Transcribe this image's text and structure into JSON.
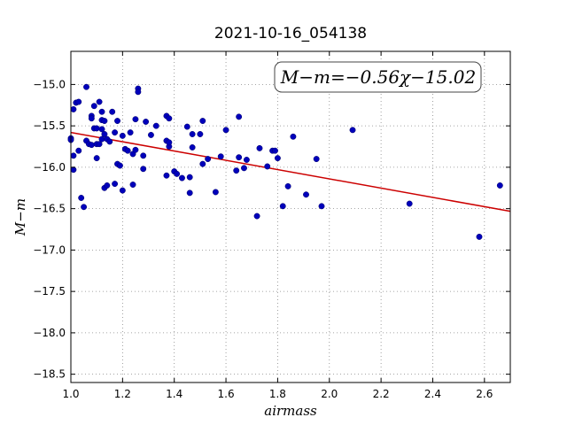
{
  "chart_data": {
    "type": "scatter",
    "title": "2021-10-16_054138",
    "xlabel": "airmass",
    "ylabel": "M−m",
    "xlim": [
      1.0,
      2.7
    ],
    "ylim": [
      -18.6,
      -14.6
    ],
    "y_inverted": true,
    "grid": true,
    "xticks": [
      1.0,
      1.2,
      1.4,
      1.6,
      1.8,
      2.0,
      2.2,
      2.4,
      2.6
    ],
    "xtick_labels": [
      "1.0",
      "1.2",
      "1.4",
      "1.6",
      "1.8",
      "2.0",
      "2.2",
      "2.4",
      "2.6"
    ],
    "yticks": [
      -15.0,
      -15.5,
      -16.0,
      -16.5,
      -17.0,
      -17.5,
      -18.0,
      -18.5
    ],
    "ytick_labels": [
      "−15.0",
      "−15.5",
      "−16.0",
      "−16.5",
      "−17.0",
      "−17.5",
      "−18.0",
      "−18.5"
    ],
    "annotation": "M−m=−0.56χ−15.02",
    "fit": {
      "slope": -0.56,
      "intercept": -15.02,
      "color": "#cc0000"
    },
    "point_color": "#0000bb",
    "points": [
      [
        1.0,
        -15.65
      ],
      [
        1.0,
        -15.67
      ],
      [
        1.01,
        -15.3
      ],
      [
        1.01,
        -15.86
      ],
      [
        1.01,
        -16.03
      ],
      [
        1.02,
        -15.22
      ],
      [
        1.03,
        -15.21
      ],
      [
        1.03,
        -15.8
      ],
      [
        1.04,
        -16.37
      ],
      [
        1.05,
        -16.48
      ],
      [
        1.06,
        -15.68
      ],
      [
        1.06,
        -15.03
      ],
      [
        1.07,
        -15.72
      ],
      [
        1.08,
        -15.38
      ],
      [
        1.08,
        -15.41
      ],
      [
        1.08,
        -15.73
      ],
      [
        1.09,
        -15.26
      ],
      [
        1.09,
        -15.53
      ],
      [
        1.1,
        -15.53
      ],
      [
        1.1,
        -15.89
      ],
      [
        1.1,
        -15.72
      ],
      [
        1.11,
        -15.72
      ],
      [
        1.11,
        -15.21
      ],
      [
        1.12,
        -15.33
      ],
      [
        1.12,
        -15.54
      ],
      [
        1.12,
        -15.43
      ],
      [
        1.12,
        -15.66
      ],
      [
        1.13,
        -15.6
      ],
      [
        1.13,
        -15.44
      ],
      [
        1.13,
        -16.25
      ],
      [
        1.14,
        -15.66
      ],
      [
        1.14,
        -16.22
      ],
      [
        1.15,
        -15.69
      ],
      [
        1.16,
        -15.33
      ],
      [
        1.17,
        -15.58
      ],
      [
        1.17,
        -16.2
      ],
      [
        1.18,
        -15.96
      ],
      [
        1.18,
        -15.44
      ],
      [
        1.19,
        -15.98
      ],
      [
        1.2,
        -16.28
      ],
      [
        1.2,
        -15.62
      ],
      [
        1.21,
        -15.78
      ],
      [
        1.22,
        -15.8
      ],
      [
        1.23,
        -15.58
      ],
      [
        1.24,
        -15.84
      ],
      [
        1.24,
        -16.21
      ],
      [
        1.25,
        -15.79
      ],
      [
        1.25,
        -15.42
      ],
      [
        1.26,
        -15.05
      ],
      [
        1.26,
        -15.09
      ],
      [
        1.28,
        -15.86
      ],
      [
        1.28,
        -16.02
      ],
      [
        1.29,
        -15.45
      ],
      [
        1.31,
        -15.61
      ],
      [
        1.33,
        -15.5
      ],
      [
        1.37,
        -16.1
      ],
      [
        1.37,
        -15.68
      ],
      [
        1.37,
        -15.38
      ],
      [
        1.38,
        -15.41
      ],
      [
        1.38,
        -15.75
      ],
      [
        1.38,
        -15.7
      ],
      [
        1.4,
        -16.05
      ],
      [
        1.41,
        -16.08
      ],
      [
        1.43,
        -16.13
      ],
      [
        1.45,
        -15.51
      ],
      [
        1.46,
        -16.31
      ],
      [
        1.46,
        -16.12
      ],
      [
        1.47,
        -15.76
      ],
      [
        1.47,
        -15.6
      ],
      [
        1.5,
        -15.6
      ],
      [
        1.51,
        -15.44
      ],
      [
        1.51,
        -15.96
      ],
      [
        1.53,
        -15.9
      ],
      [
        1.56,
        -16.3
      ],
      [
        1.58,
        -15.87
      ],
      [
        1.6,
        -15.55
      ],
      [
        1.64,
        -16.04
      ],
      [
        1.65,
        -15.88
      ],
      [
        1.65,
        -15.39
      ],
      [
        1.67,
        -16.01
      ],
      [
        1.68,
        -15.91
      ],
      [
        1.72,
        -16.59
      ],
      [
        1.73,
        -15.77
      ],
      [
        1.76,
        -15.99
      ],
      [
        1.78,
        -15.8
      ],
      [
        1.79,
        -15.8
      ],
      [
        1.8,
        -15.89
      ],
      [
        1.82,
        -16.47
      ],
      [
        1.84,
        -16.23
      ],
      [
        1.86,
        -15.63
      ],
      [
        1.91,
        -16.33
      ],
      [
        1.95,
        -15.9
      ],
      [
        1.97,
        -16.47
      ],
      [
        2.09,
        -15.55
      ],
      [
        2.31,
        -16.44
      ],
      [
        2.58,
        -16.84
      ],
      [
        2.66,
        -16.22
      ]
    ]
  }
}
